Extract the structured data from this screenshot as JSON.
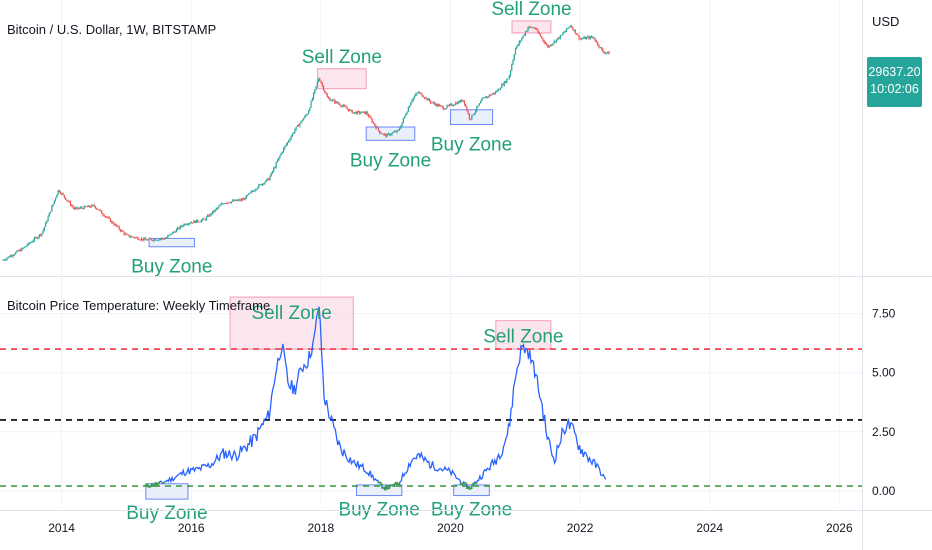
{
  "header": {
    "title": "Bitcoin / U.S. Dollar, 1W, BITSTAMP",
    "currency": "USD",
    "last_price": "29637.20",
    "countdown": "10:02:06"
  },
  "indicator": {
    "title": "Bitcoin Price Temperature: Weekly Timeframe"
  },
  "colors": {
    "up": "#26a69a",
    "down": "#ef5350",
    "temperature_line": "#2962ff",
    "sell_zone_fill": "#fce4ec",
    "buy_zone_fill": "#e8eefc",
    "zone_text": "#22a07a",
    "sell_line": "#f23645",
    "mid_line": "#000000",
    "buy_line": "#43a047"
  },
  "chart_data": [
    {
      "type": "candlestick",
      "title": "Bitcoin / U.S. Dollar, 1W, BITSTAMP",
      "y_scale": "log",
      "ylim": [
        110,
        90000
      ],
      "series": [
        {
          "name": "BTC/USD",
          "x": [
            2013.1,
            2013.4,
            2013.7,
            2013.95,
            2014.2,
            2014.5,
            2014.8,
            2015.0,
            2015.3,
            2015.6,
            2015.9,
            2016.2,
            2016.5,
            2016.8,
            2017.0,
            2017.2,
            2017.4,
            2017.6,
            2017.8,
            2017.97,
            2018.1,
            2018.3,
            2018.5,
            2018.7,
            2018.9,
            2019.0,
            2019.2,
            2019.4,
            2019.5,
            2019.7,
            2019.9,
            2020.2,
            2020.3,
            2020.5,
            2020.7,
            2020.9,
            2021.0,
            2021.2,
            2021.3,
            2021.5,
            2021.7,
            2021.85,
            2022.0,
            2022.2,
            2022.35,
            2022.45
          ],
          "y": [
            150,
            200,
            300,
            900,
            550,
            600,
            380,
            280,
            250,
            260,
            380,
            420,
            650,
            700,
            950,
            1200,
            2400,
            4200,
            6500,
            16000,
            9500,
            8000,
            6500,
            6500,
            4000,
            3600,
            4100,
            9000,
            11000,
            8500,
            7300,
            9000,
            5500,
            9300,
            11000,
            16000,
            33000,
            58000,
            57000,
            35000,
            46000,
            61000,
            43000,
            45000,
            31000,
            29637
          ]
        }
      ]
    },
    {
      "type": "line",
      "title": "Bitcoin Price Temperature: Weekly Timeframe",
      "ylim": [
        -0.6,
        8.5
      ],
      "series": [
        {
          "name": "",
          "x": [
            2015.3,
            2015.5,
            2015.7,
            2015.9,
            2016.1,
            2016.3,
            2016.5,
            2016.7,
            2016.9,
            2017.0,
            2017.1,
            2017.2,
            2017.3,
            2017.4,
            2017.5,
            2017.6,
            2017.7,
            2017.8,
            2017.9,
            2017.97,
            2018.05,
            2018.2,
            2018.3,
            2018.5,
            2018.7,
            2018.9,
            2019.0,
            2019.2,
            2019.4,
            2019.5,
            2019.7,
            2019.9,
            2020.0,
            2020.2,
            2020.3,
            2020.5,
            2020.7,
            2020.8,
            2020.9,
            2021.0,
            2021.1,
            2021.2,
            2021.3,
            2021.4,
            2021.5,
            2021.6,
            2021.7,
            2021.8,
            2021.9,
            2022.0,
            2022.2,
            2022.3,
            2022.4
          ],
          "y": [
            0.2,
            0.3,
            0.5,
            0.8,
            0.9,
            1.1,
            1.6,
            1.5,
            2.0,
            2.3,
            2.8,
            3.2,
            5.0,
            6.2,
            4.5,
            4.3,
            5.2,
            5.5,
            6.4,
            8.0,
            4.0,
            2.6,
            1.8,
            1.2,
            0.9,
            0.3,
            0.1,
            0.3,
            1.3,
            1.5,
            1.1,
            0.9,
            0.8,
            0.3,
            0.1,
            0.7,
            1.3,
            1.8,
            2.6,
            4.8,
            6.1,
            5.9,
            5.1,
            3.8,
            2.2,
            1.3,
            2.2,
            2.9,
            2.5,
            1.8,
            1.2,
            0.9,
            0.4
          ]
        }
      ],
      "thresholds": [
        6,
        3,
        0.2
      ]
    }
  ],
  "x_axis": {
    "ticks": [
      2014,
      2016,
      2018,
      2020,
      2022,
      2024,
      2026
    ],
    "labels": [
      "2014",
      "2016",
      "2018",
      "2020",
      "2022",
      "2024",
      "2026"
    ]
  },
  "right_axis": {
    "ticks": [
      7.5,
      5.0,
      2.5,
      0.0
    ],
    "labels": [
      "7.50",
      "5.00",
      "2.50",
      "0.00"
    ]
  },
  "price_zones": [
    {
      "label": "Buy Zone",
      "kind": "buy",
      "x0": 2015.35,
      "x1": 2016.05,
      "y0": 210,
      "y1": 260
    },
    {
      "label": "Sell Zone",
      "kind": "sell",
      "x0": 2017.95,
      "x1": 2018.7,
      "y0": 12000,
      "y1": 20000
    },
    {
      "label": "Buy Zone",
      "kind": "buy",
      "x0": 2018.7,
      "x1": 2019.45,
      "y0": 3200,
      "y1": 4500
    },
    {
      "label": "Buy Zone",
      "kind": "buy",
      "x0": 2020.0,
      "x1": 2020.65,
      "y0": 4800,
      "y1": 7000
    },
    {
      "label": "Sell Zone",
      "kind": "sell",
      "x0": 2020.95,
      "x1": 2021.55,
      "y0": 50000,
      "y1": 68000
    }
  ],
  "temp_zones": [
    {
      "label": "Buy Zone",
      "kind": "buy",
      "x0": 2015.3,
      "x1": 2015.95,
      "y0": -0.35,
      "y1": 0.3
    },
    {
      "label": "Sell Zone",
      "kind": "sell",
      "x0": 2016.6,
      "x1": 2018.5,
      "y0": 6.0,
      "y1": 8.2
    },
    {
      "label": "Buy Zone",
      "kind": "buy",
      "x0": 2018.55,
      "x1": 2019.25,
      "y0": -0.2,
      "y1": 0.25
    },
    {
      "label": "Buy Zone",
      "kind": "buy",
      "x0": 2020.05,
      "x1": 2020.6,
      "y0": -0.2,
      "y1": 0.25
    },
    {
      "label": "Sell Zone",
      "kind": "sell",
      "x0": 2020.7,
      "x1": 2021.55,
      "y0": 6.0,
      "y1": 7.2
    }
  ]
}
